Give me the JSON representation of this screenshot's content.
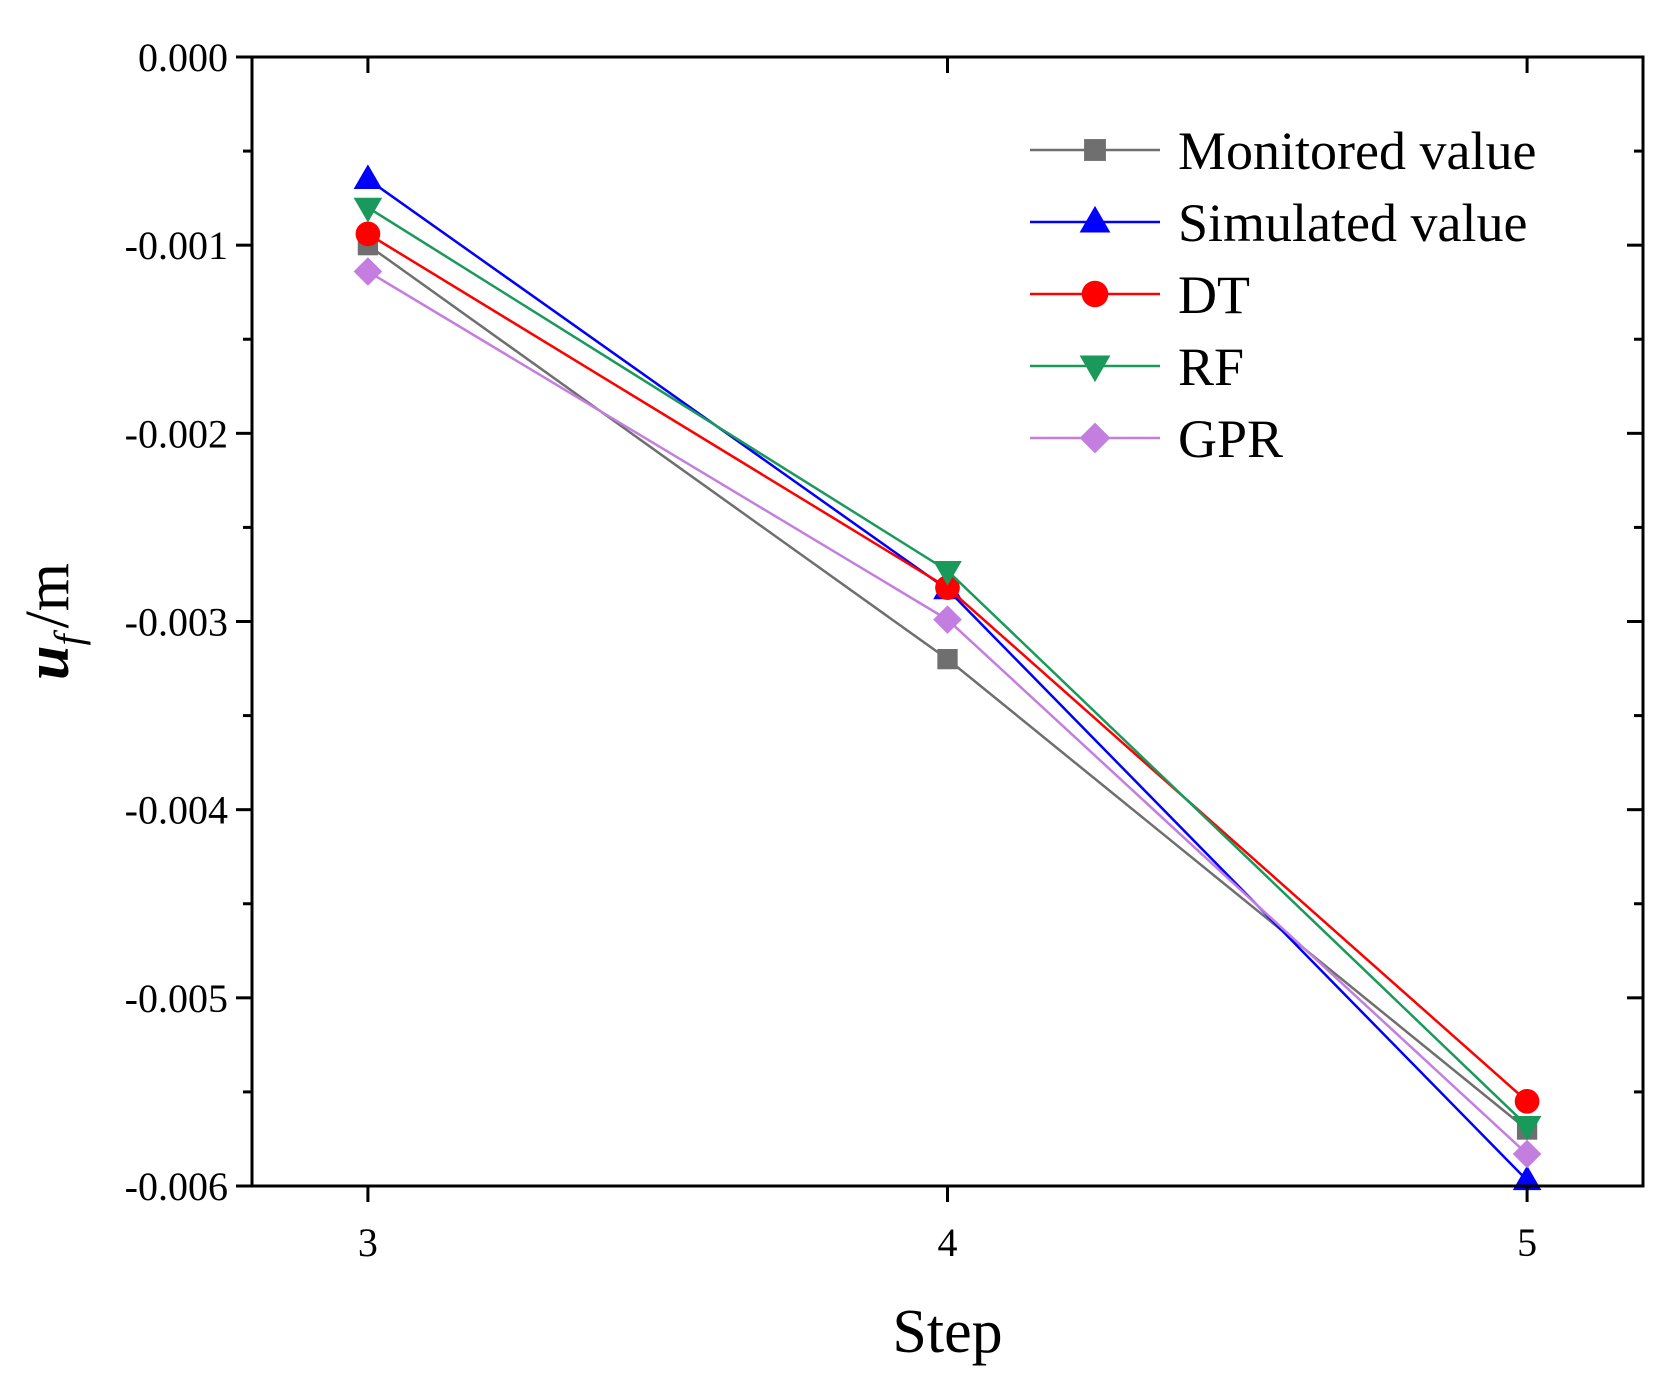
{
  "chart_data": {
    "type": "line",
    "title": "",
    "xlabel": "Step",
    "ylabel_main": "u",
    "ylabel_sub": "f",
    "ylabel_unit": "/m",
    "x": [
      3,
      4,
      5
    ],
    "xlim": [
      2.8,
      5.2
    ],
    "ylim": [
      -0.006,
      0.0
    ],
    "x_ticks": [
      3,
      4,
      5
    ],
    "x_tick_labels": [
      "3",
      "4",
      "5"
    ],
    "y_ticks": [
      0.0,
      -0.001,
      -0.002,
      -0.003,
      -0.004,
      -0.005,
      -0.006
    ],
    "y_tick_labels": [
      "0.000",
      "-0.001",
      "-0.002",
      "-0.003",
      "-0.004",
      "-0.005",
      "-0.006"
    ],
    "legend_position": "top-right",
    "grid": false,
    "series": [
      {
        "name": "Monitored value",
        "color": "#6f6f6f",
        "marker": "square",
        "values": [
          -0.001,
          -0.0032,
          -0.0057
        ]
      },
      {
        "name": "Simulated value",
        "color": "#0000ff",
        "marker": "triangle-up",
        "values": [
          -0.00065,
          -0.00283,
          -0.00597
        ]
      },
      {
        "name": "DT",
        "color": "#ff0000",
        "marker": "circle",
        "values": [
          -0.00094,
          -0.00282,
          -0.00555
        ]
      },
      {
        "name": "RF",
        "color": "#1a9a5a",
        "marker": "triangle-down",
        "values": [
          -0.0008,
          -0.00273,
          -0.00568
        ]
      },
      {
        "name": "GPR",
        "color": "#c37ee0",
        "marker": "diamond",
        "values": [
          -0.00114,
          -0.00299,
          -0.00583
        ]
      }
    ]
  }
}
